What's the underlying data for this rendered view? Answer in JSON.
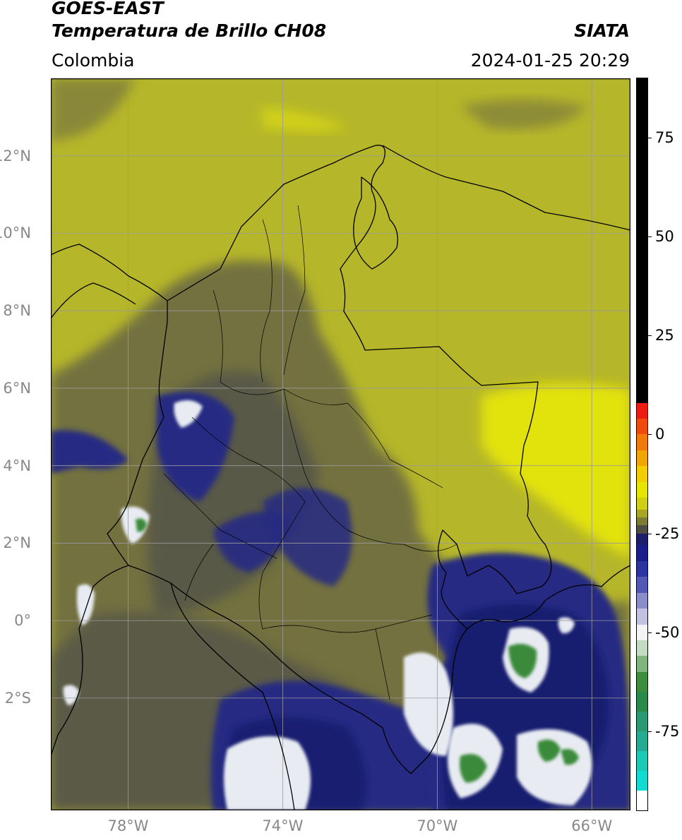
{
  "header": {
    "title_line1": "GOES-EAST",
    "title_line2": "Temperatura de Brillo CH08",
    "region": "Colombia",
    "organization": "SIATA",
    "timestamp": "2024-01-25 20:29"
  },
  "map": {
    "extent": {
      "lon_min": -80.0,
      "lon_max": -65.0,
      "lat_min": -4.9,
      "lat_max": 14.0
    },
    "lat_ticks": [
      {
        "value": 12,
        "label": "12°N"
      },
      {
        "value": 10,
        "label": "10°N"
      },
      {
        "value": 8,
        "label": "8°N"
      },
      {
        "value": 6,
        "label": "6°N"
      },
      {
        "value": 4,
        "label": "4°N"
      },
      {
        "value": 2,
        "label": "2°N"
      },
      {
        "value": 0,
        "label": "0°"
      },
      {
        "value": -2,
        "label": "2°S"
      }
    ],
    "lon_ticks": [
      {
        "value": -78,
        "label": "78°W"
      },
      {
        "value": -74,
        "label": "74°W"
      },
      {
        "value": -70,
        "label": "70°W"
      },
      {
        "value": -66,
        "label": "66°W"
      }
    ],
    "colors": {
      "background": "#b6b62a",
      "warm_yellow": "#e2e20c",
      "gray_olive": "#6c6a42",
      "dark_gray": "#54544a",
      "navy": "#262a82",
      "deep_navy": "#141a6e",
      "white_cold": "#e8ecf2",
      "green_coldest": "#3a8a3a",
      "border": "#000000",
      "grid": "#9a9a9a"
    }
  },
  "colorbar": {
    "range": [
      -95,
      90
    ],
    "ticks": [
      {
        "value": 75,
        "label": "75"
      },
      {
        "value": 50,
        "label": "50"
      },
      {
        "value": 25,
        "label": "25"
      },
      {
        "value": 0,
        "label": "0"
      },
      {
        "value": -25,
        "label": "-25"
      },
      {
        "value": -50,
        "label": "-50"
      },
      {
        "value": -75,
        "label": "-75"
      }
    ],
    "segments": [
      {
        "from": 8,
        "to": 90,
        "color": "#000000"
      },
      {
        "from": 4,
        "to": 8,
        "color": "#ee1c10"
      },
      {
        "from": 0,
        "to": 4,
        "color": "#f04a0c"
      },
      {
        "from": -4,
        "to": 0,
        "color": "#f27a08"
      },
      {
        "from": -8,
        "to": -4,
        "color": "#f2a604"
      },
      {
        "from": -12,
        "to": -8,
        "color": "#f2ce00"
      },
      {
        "from": -16,
        "to": -12,
        "color": "#e8e600"
      },
      {
        "from": -19,
        "to": -16,
        "color": "#cfcf14"
      },
      {
        "from": -21,
        "to": -19,
        "color": "#a8a624"
      },
      {
        "from": -23,
        "to": -21,
        "color": "#7e7c34"
      },
      {
        "from": -25,
        "to": -23,
        "color": "#4e4e44"
      },
      {
        "from": -28,
        "to": -25,
        "color": "#1c1e6c"
      },
      {
        "from": -32,
        "to": -28,
        "color": "#1a1e88"
      },
      {
        "from": -36,
        "to": -32,
        "color": "#2c34a2"
      },
      {
        "from": -40,
        "to": -36,
        "color": "#5258b6"
      },
      {
        "from": -44,
        "to": -40,
        "color": "#8a8ec8"
      },
      {
        "from": -48,
        "to": -44,
        "color": "#c0c2e0"
      },
      {
        "from": -52,
        "to": -48,
        "color": "#f2f4f6"
      },
      {
        "from": -56,
        "to": -52,
        "color": "#c2dcc2"
      },
      {
        "from": -60,
        "to": -56,
        "color": "#7eb67e"
      },
      {
        "from": -65,
        "to": -60,
        "color": "#3c8e3c"
      },
      {
        "from": -70,
        "to": -65,
        "color": "#2a8a4a"
      },
      {
        "from": -75,
        "to": -70,
        "color": "#2a9a72"
      },
      {
        "from": -80,
        "to": -75,
        "color": "#26aa94"
      },
      {
        "from": -85,
        "to": -80,
        "color": "#1cc8b6"
      },
      {
        "from": -90,
        "to": -85,
        "color": "#10dcd4"
      },
      {
        "from": -95,
        "to": -90,
        "color": "#ffffff"
      }
    ]
  }
}
